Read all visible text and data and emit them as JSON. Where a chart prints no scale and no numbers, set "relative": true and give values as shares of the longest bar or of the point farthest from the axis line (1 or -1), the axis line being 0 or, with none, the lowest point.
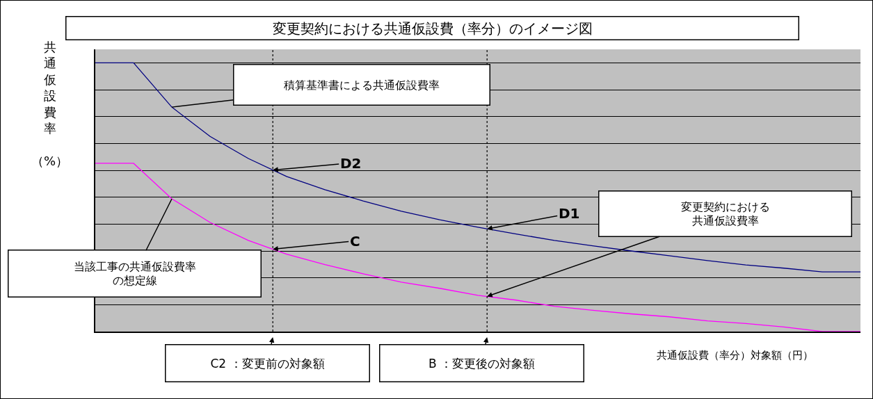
{
  "chart_data": {
    "type": "line",
    "title": "変更契約における共通仮設費（率分）のイメージ図",
    "xlabel": "共通仮設費（率分）対象額（円）",
    "ylabel": "共通仮設費率（%）",
    "relative": true,
    "grid": "y",
    "marker": "none",
    "line_style": "solid",
    "categories": [
      null,
      null,
      null,
      null,
      null,
      null,
      null,
      null,
      null,
      null,
      null,
      null,
      null,
      null,
      null,
      null,
      null,
      null,
      null,
      null,
      null
    ],
    "series": [
      {
        "color": "#000080",
        "values": [
          1,
          1,
          0.835,
          0.726,
          0.644,
          0.577,
          0.528,
          0.486,
          0.448,
          0.416,
          0.388,
          0.363,
          0.339,
          0.319,
          0.3,
          0.282,
          0.264,
          0.248,
          0.236,
          0.222,
          0.222
        ]
      },
      {
        "color": "#ff00ff",
        "values": [
          0.626,
          0.626,
          0.494,
          0.406,
          0.339,
          0.288,
          0.249,
          0.215,
          0.184,
          0.161,
          0.135,
          0.117,
          0.094,
          0.079,
          0.066,
          0.055,
          0.04,
          0.03,
          0.017,
          0,
          0
        ]
      }
    ],
    "annotations": [
      "積算基準書による共通仮設費率",
      "D2",
      "当該工事の共通仮設費率の想定線",
      "C",
      "D1",
      "変更契約における共通仮設費率",
      "C2 ：変更前の対象額",
      "B ：変更後の対象額"
    ]
  }
}
